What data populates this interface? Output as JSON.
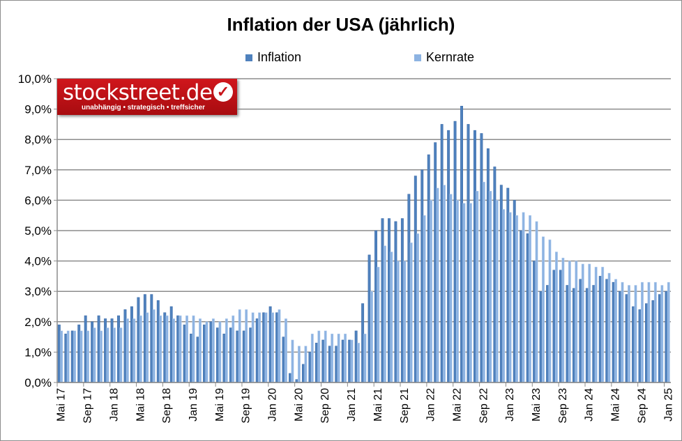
{
  "chart_data": {
    "type": "bar",
    "title": "Inflation der USA (jährlich)",
    "xlabel": "",
    "ylabel": "",
    "ylim": [
      0,
      10
    ],
    "y_ticks": [
      "0,0%",
      "1,0%",
      "2,0%",
      "3,0%",
      "4,0%",
      "5,0%",
      "6,0%",
      "7,0%",
      "8,0%",
      "9,0%",
      "10,0%"
    ],
    "grid": true,
    "legend": "top",
    "x_start": "Mai 17",
    "x_end": "Jan 25",
    "x_tick_labels": [
      "Mai 17",
      "Sep 17",
      "Jan 18",
      "Mai 18",
      "Sep 18",
      "Jan 19",
      "Mai 19",
      "Sep 19",
      "Jan 20",
      "Mai 20",
      "Sep 20",
      "Jan 21",
      "Mai 21",
      "Sep 21",
      "Jan 22",
      "Mai 22",
      "Sep 22",
      "Jan 23",
      "Mai 23",
      "Sep 23",
      "Jan 24",
      "Mai 24",
      "Sep 24",
      "Jan 25"
    ],
    "series": [
      {
        "name": "Inflation",
        "color": "#4f81bd",
        "values": [
          1.9,
          1.6,
          1.7,
          1.9,
          2.2,
          2.0,
          2.2,
          2.1,
          2.1,
          2.2,
          2.4,
          2.5,
          2.8,
          2.9,
          2.9,
          2.7,
          2.3,
          2.5,
          2.2,
          1.9,
          1.6,
          1.5,
          1.9,
          2.0,
          1.8,
          1.6,
          1.8,
          1.7,
          1.7,
          1.8,
          2.1,
          2.3,
          2.5,
          2.3,
          1.5,
          0.3,
          0.1,
          0.6,
          1.0,
          1.3,
          1.4,
          1.2,
          1.2,
          1.4,
          1.4,
          1.7,
          2.6,
          4.2,
          5.0,
          5.4,
          5.4,
          5.3,
          5.4,
          6.2,
          6.8,
          7.0,
          7.5,
          7.9,
          8.5,
          8.3,
          8.6,
          9.1,
          8.5,
          8.3,
          8.2,
          7.7,
          7.1,
          6.5,
          6.4,
          6.0,
          5.0,
          4.9,
          4.0,
          3.0,
          3.2,
          3.7,
          3.7,
          3.2,
          3.1,
          3.4,
          3.1,
          3.2,
          3.5,
          3.4,
          3.3,
          3.0,
          2.9,
          2.5,
          2.4,
          2.6,
          2.7,
          2.9,
          3.0
        ]
      },
      {
        "name": "Kernrate",
        "color": "#8db3e2",
        "values": [
          1.7,
          1.7,
          1.7,
          1.7,
          1.7,
          1.8,
          1.7,
          1.8,
          1.8,
          1.8,
          2.1,
          2.1,
          2.2,
          2.3,
          2.4,
          2.2,
          2.2,
          2.1,
          2.2,
          2.2,
          2.2,
          2.1,
          2.0,
          2.1,
          2.0,
          2.1,
          2.2,
          2.4,
          2.4,
          2.3,
          2.3,
          2.3,
          2.3,
          2.4,
          2.1,
          1.4,
          1.2,
          1.2,
          1.6,
          1.7,
          1.7,
          1.6,
          1.6,
          1.6,
          1.4,
          1.3,
          1.6,
          3.0,
          3.8,
          4.5,
          4.3,
          4.0,
          4.0,
          4.6,
          4.9,
          5.5,
          6.0,
          6.4,
          6.5,
          6.2,
          6.0,
          5.9,
          5.9,
          6.3,
          6.6,
          6.3,
          6.0,
          5.7,
          5.6,
          5.5,
          5.6,
          5.5,
          5.3,
          4.8,
          4.7,
          4.3,
          4.1,
          4.0,
          4.0,
          3.9,
          3.9,
          3.8,
          3.8,
          3.6,
          3.4,
          3.3,
          3.2,
          3.2,
          3.3,
          3.3,
          3.3,
          3.2,
          3.3
        ]
      }
    ]
  },
  "logo": {
    "text": "stockstreet.de",
    "tagline": "unabhängig • strategisch • treffsicher"
  }
}
